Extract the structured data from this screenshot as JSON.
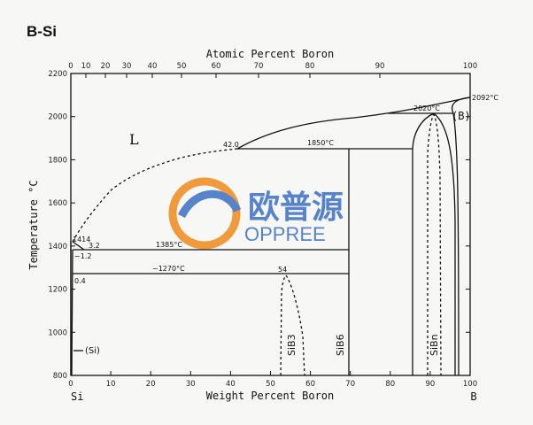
{
  "title": "B-Si",
  "axes": {
    "top_label": "Atomic Percent Boron",
    "bottom_label": "Weight Percent Boron",
    "left_label": "Temperature °C",
    "left_element": "Si",
    "right_element": "B",
    "bottom_ticks": [
      "0",
      "10",
      "20",
      "30",
      "40",
      "50",
      "60",
      "70",
      "80",
      "90",
      "100"
    ],
    "top_ticks": [
      "0",
      "10",
      "20",
      "30",
      "40",
      "50",
      "60",
      "70",
      "80",
      "90",
      "100"
    ],
    "temp_ticks": [
      "800",
      "1000",
      "1200",
      "1400",
      "1600",
      "1800",
      "2000",
      "2200"
    ]
  },
  "labels": {
    "liquid": "L",
    "boron": "(B)",
    "silicon": "(Si)",
    "sib3": "SiB3",
    "sib6": "SiB6",
    "sibn": "SiBn",
    "t2092": "2092°C",
    "t2020": "2020°C",
    "t1850": "1850°C",
    "t1385": "1385°C",
    "t1270": "~1270°C",
    "t1414": "1414",
    "c42": "42.0",
    "c3_2": "3.2",
    "c1_2": "~1.2",
    "c54": "54",
    "c0_4": "0.4"
  },
  "watermark": {
    "cn": "欧普源",
    "en": "OPPREE",
    "color_blue": "#3a6fc4",
    "color_orange": "#f08a1c"
  }
}
